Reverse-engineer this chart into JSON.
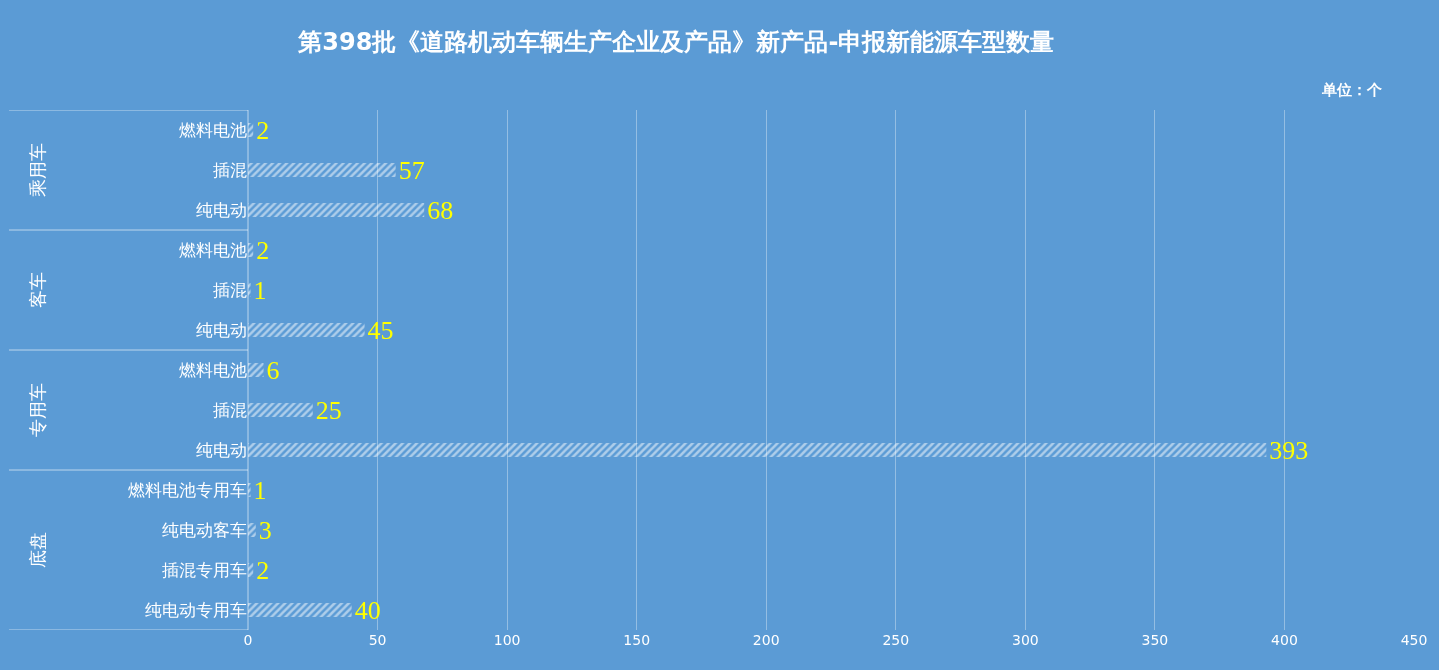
{
  "chart_data": {
    "type": "bar",
    "orientation": "horizontal",
    "title": "第398批《道路机动车辆生产企业及产品》新产品-申报新能源车型数量",
    "categories": [
      "燃料电池",
      "插混",
      "纯电动",
      "燃料电池",
      "插混",
      "纯电动",
      "燃料电池",
      "插混",
      "纯电动",
      "燃料电池专用车",
      "纯电动客车",
      "插混专用车",
      "纯电动专用车"
    ],
    "values": [
      2,
      57,
      68,
      2,
      1,
      45,
      6,
      25,
      393,
      1,
      3,
      2,
      40
    ],
    "color": "#ffffff",
    "data_labels": true,
    "xlim": [
      0,
      450
    ],
    "xticks": [
      0,
      50,
      100,
      150,
      200,
      250,
      300,
      350,
      400,
      450
    ],
    "grid": "x",
    "annotations": [
      "单位：个",
      "乘用车",
      "客车",
      "专用车",
      "底盘"
    ]
  }
}
